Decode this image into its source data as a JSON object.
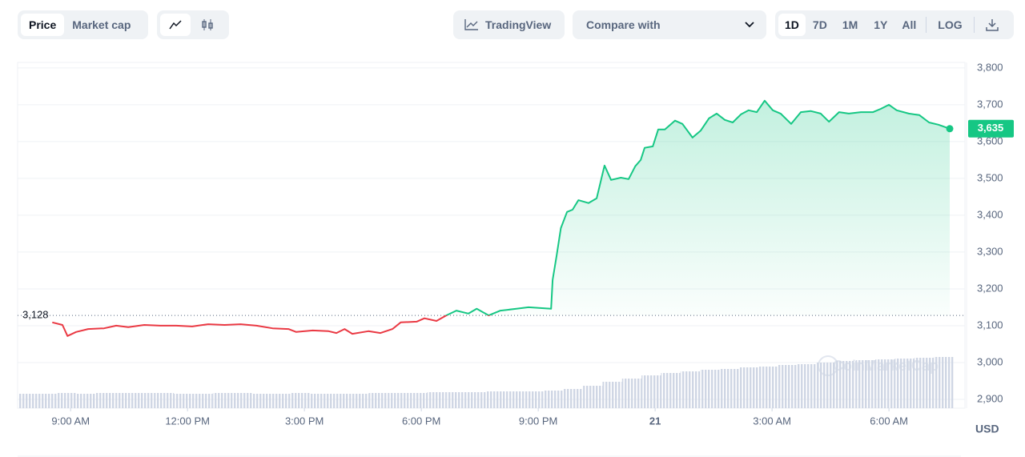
{
  "toolbar": {
    "views": [
      "Price",
      "Market cap"
    ],
    "tradingview": "TradingView",
    "compare": "Compare with",
    "ranges": [
      "1D",
      "7D",
      "1M",
      "1Y",
      "All"
    ],
    "log": "LOG"
  },
  "chart_data": {
    "type": "line",
    "x": [
      8.53,
      8.79,
      8.92,
      9.14,
      9.45,
      9.86,
      10.17,
      10.48,
      10.89,
      11.3,
      11.71,
      12.12,
      12.53,
      12.95,
      13.36,
      13.77,
      14.18,
      14.59,
      14.79,
      15.21,
      15.62,
      15.82,
      16.03,
      16.23,
      16.64,
      16.95,
      17.26,
      17.47,
      17.88,
      18.08,
      18.39,
      18.64,
      18.9,
      19.21,
      19.42,
      19.73,
      20.03,
      20.44,
      20.75,
      21.06,
      21.33,
      21.37,
      21.47,
      21.58,
      21.74,
      21.88,
      22.03,
      22.29,
      22.5,
      22.7,
      22.87,
      23.12,
      23.32,
      23.49,
      23.63,
      23.73,
      23.94,
      24.08,
      24.25,
      24.51,
      24.7,
      24.96,
      25.17,
      25.38,
      25.58,
      25.79,
      25.99,
      26.2,
      26.4,
      26.61,
      26.81,
      27.02,
      27.22,
      27.49,
      27.74,
      27.99,
      28.25,
      28.46,
      28.72,
      28.97,
      29.28,
      29.59,
      29.79,
      30.0,
      30.2,
      30.51,
      30.78,
      31.03,
      31.27,
      31.56
    ],
    "values": [
      3109,
      3102,
      3072,
      3083,
      3091,
      3093,
      3100,
      3096,
      3102,
      3100,
      3100,
      3098,
      3104,
      3102,
      3104,
      3100,
      3093,
      3091,
      3083,
      3087,
      3085,
      3080,
      3091,
      3078,
      3085,
      3080,
      3091,
      3109,
      3111,
      3120,
      3113,
      3128,
      3141,
      3133,
      3146,
      3128,
      3141,
      3146,
      3150,
      3148,
      3146,
      3224,
      3289,
      3365,
      3409,
      3415,
      3441,
      3433,
      3446,
      3535,
      3496,
      3502,
      3498,
      3533,
      3550,
      3583,
      3587,
      3633,
      3633,
      3657,
      3648,
      3611,
      3630,
      3663,
      3676,
      3659,
      3652,
      3674,
      3685,
      3680,
      3711,
      3685,
      3676,
      3648,
      3680,
      3683,
      3676,
      3654,
      3680,
      3676,
      3680,
      3680,
      3689,
      3700,
      3685,
      3676,
      3672,
      3652,
      3646,
      3635
    ],
    "up_color": "#16c784",
    "down_color": "#ea3943",
    "baseline": {
      "value": 3128,
      "label": "3,128"
    },
    "last_price": {
      "value": 3635,
      "label": "3,635"
    },
    "xlim": [
      7.64,
      31.95
    ],
    "xticks": [
      {
        "value": 9,
        "label": "9:00 AM"
      },
      {
        "value": 12,
        "label": "12:00 PM"
      },
      {
        "value": 15,
        "label": "3:00 PM"
      },
      {
        "value": 18,
        "label": "6:00 PM"
      },
      {
        "value": 21,
        "label": "9:00 PM"
      },
      {
        "value": 24,
        "label": "21"
      },
      {
        "value": 27,
        "label": "3:00 AM"
      },
      {
        "value": 30,
        "label": "6:00 AM"
      }
    ],
    "ylim": [
      2876,
      3815
    ],
    "yticks": [
      {
        "value": 2900,
        "label": "2,900"
      },
      {
        "value": 3000,
        "label": "3,000"
      },
      {
        "value": 3100,
        "label": "3,100"
      },
      {
        "value": 3200,
        "label": "3,200"
      },
      {
        "value": 3300,
        "label": "3,300"
      },
      {
        "value": 3400,
        "label": "3,400"
      },
      {
        "value": 3500,
        "label": "3,500"
      },
      {
        "value": 3600,
        "label": "3,600"
      },
      {
        "value": 3700,
        "label": "3,700"
      },
      {
        "value": 3800,
        "label": "3,800"
      }
    ],
    "y_unit": "USD",
    "grid": true,
    "volume": {
      "x": [
        7.65,
        8.15,
        8.65,
        9.15,
        9.65,
        10.15,
        10.65,
        11.15,
        11.65,
        12.15,
        12.65,
        13.15,
        13.65,
        14.15,
        14.65,
        15.15,
        15.65,
        16.15,
        16.65,
        17.15,
        17.65,
        18.15,
        18.65,
        19.15,
        19.65,
        20.15,
        20.65,
        21.15,
        21.65,
        22.15,
        22.65,
        23.15,
        23.65,
        24.15,
        24.65,
        25.15,
        25.65,
        26.15,
        26.65,
        27.15,
        27.65,
        28.15,
        28.65,
        29.15,
        29.65,
        30.15,
        30.65,
        31.15
      ],
      "values": [
        18,
        18,
        19,
        18,
        19,
        19,
        19,
        19,
        18,
        18,
        19,
        19,
        18,
        18,
        19,
        18,
        18,
        18,
        19,
        19,
        19,
        20,
        20,
        20,
        21,
        21,
        21,
        22,
        24,
        28,
        33,
        37,
        41,
        44,
        46,
        48,
        49,
        51,
        52,
        54,
        55,
        57,
        59,
        60,
        61,
        62,
        63,
        64
      ],
      "width": 0.5,
      "lim": [
        0,
        100
      ],
      "color": "#cfd6e4"
    },
    "watermark": "CoinMarketCap"
  }
}
